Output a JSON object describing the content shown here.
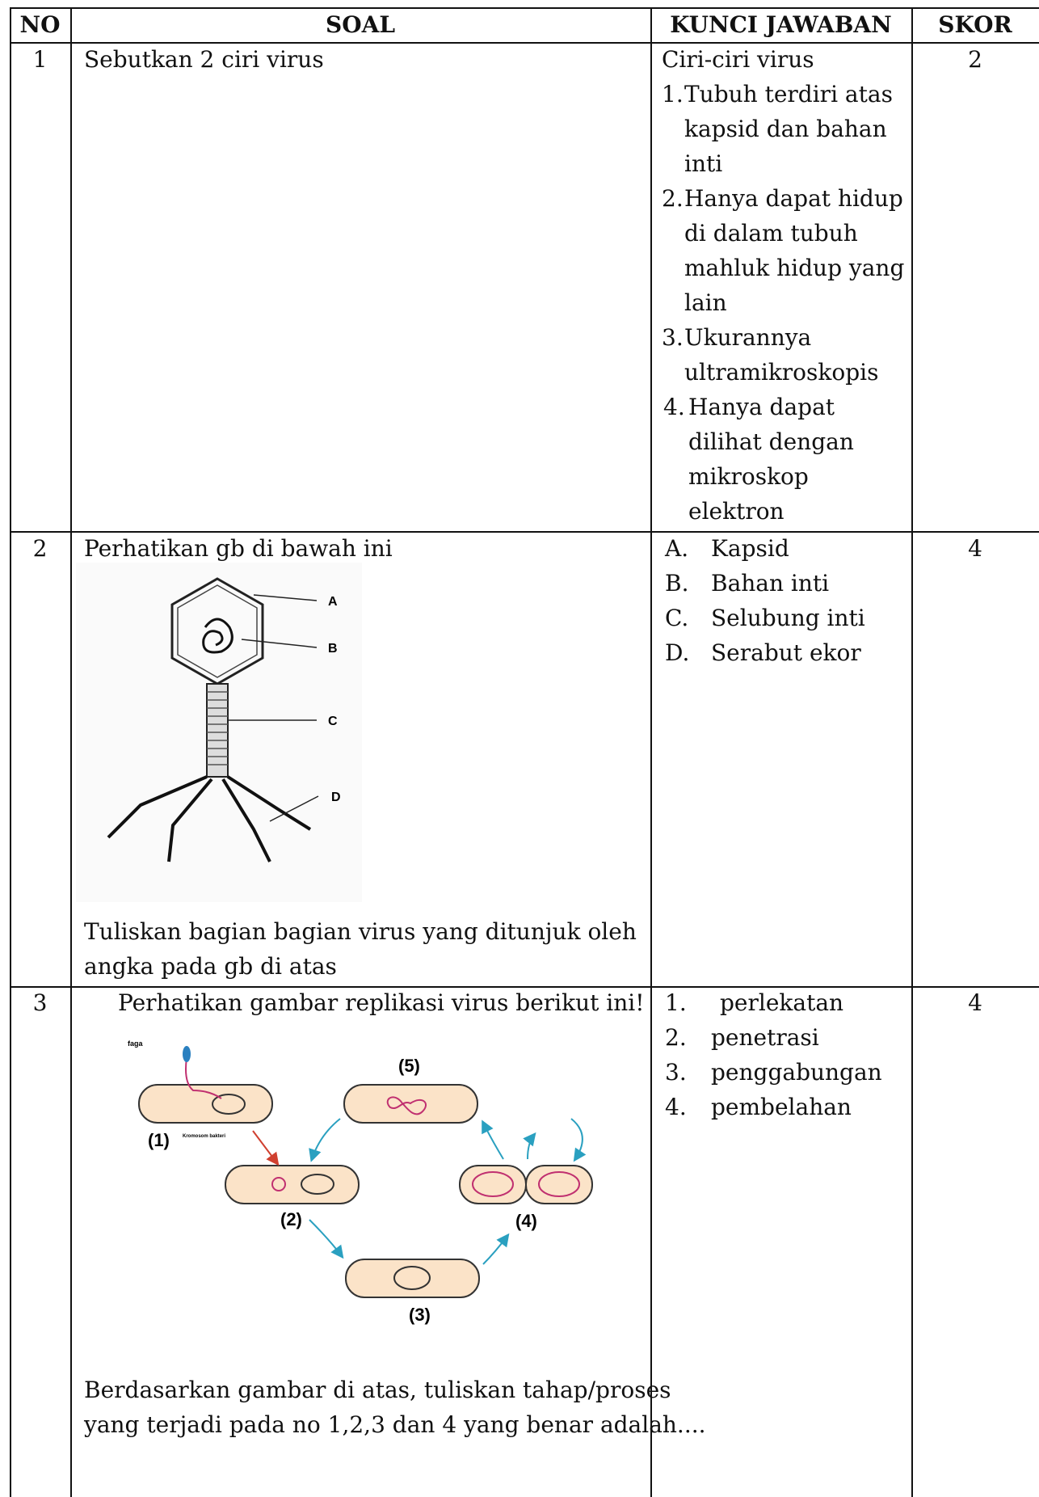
{
  "table": {
    "header": [
      "NO",
      "SOAL",
      "KUNCI JAWABAN",
      "SKOR"
    ],
    "rows": [
      {
        "no": "1",
        "soal": [
          "Sebutkan 2 ciri virus"
        ],
        "kunci_intro": "Ciri-ciri virus",
        "kunci": [
          {
            "num": "1.",
            "lines": [
              "Tubuh terdiri atas",
              "kapsid dan bahan",
              "inti"
            ]
          },
          {
            "num": "2.",
            "lines": [
              "Hanya dapat hidup",
              "di dalam tubuh",
              "mahluk hidup yang",
              "lain"
            ]
          },
          {
            "num": "3.",
            "lines": [
              "Ukurannya",
              "ultramikroskopis"
            ]
          },
          {
            "num": "4.",
            "lines": [
              "Hanya dapat",
              "dilihat dengan",
              "mikroskop",
              "elektron"
            ]
          }
        ],
        "skor": "2"
      },
      {
        "no": "2",
        "soal": [
          "Perhatikan gb di bawah ini"
        ],
        "figure_labels": [
          "A",
          "B",
          "C",
          "D"
        ],
        "soal_after": [
          "Tuliskan bagian bagian virus yang ditunjuk oleh",
          "angka pada gb di atas"
        ],
        "kunci": [
          {
            "num": "A.",
            "text": "Kapsid"
          },
          {
            "num": "B.",
            "text": "Bahan inti"
          },
          {
            "num": "C.",
            "text": "Selubung inti"
          },
          {
            "num": "D.",
            "text": "Serabut ekor"
          }
        ],
        "skor": "4"
      },
      {
        "no": "3",
        "soal": [
          "Perhatikan gambar replikasi virus berikut ini!"
        ],
        "figure_labels": {
          "faga": "faga",
          "kromosom": "Kromosom bakteri",
          "steps": [
            "(1)",
            "(2)",
            "(3)",
            "(4)",
            "(5)"
          ]
        },
        "soal_after": [
          "Berdasarkan gambar di atas, tuliskan tahap/proses",
          "yang terjadi pada no 1,2,3 dan 4 yang benar adalah...."
        ],
        "kunci": [
          {
            "num": "1.",
            "text": "perlekatan"
          },
          {
            "num": "2.",
            "text": "penetrasi"
          },
          {
            "num": "3.",
            "text": "penggabungan"
          },
          {
            "num": "4.",
            "text": "pembelahan"
          }
        ],
        "skor": "4"
      }
    ]
  }
}
